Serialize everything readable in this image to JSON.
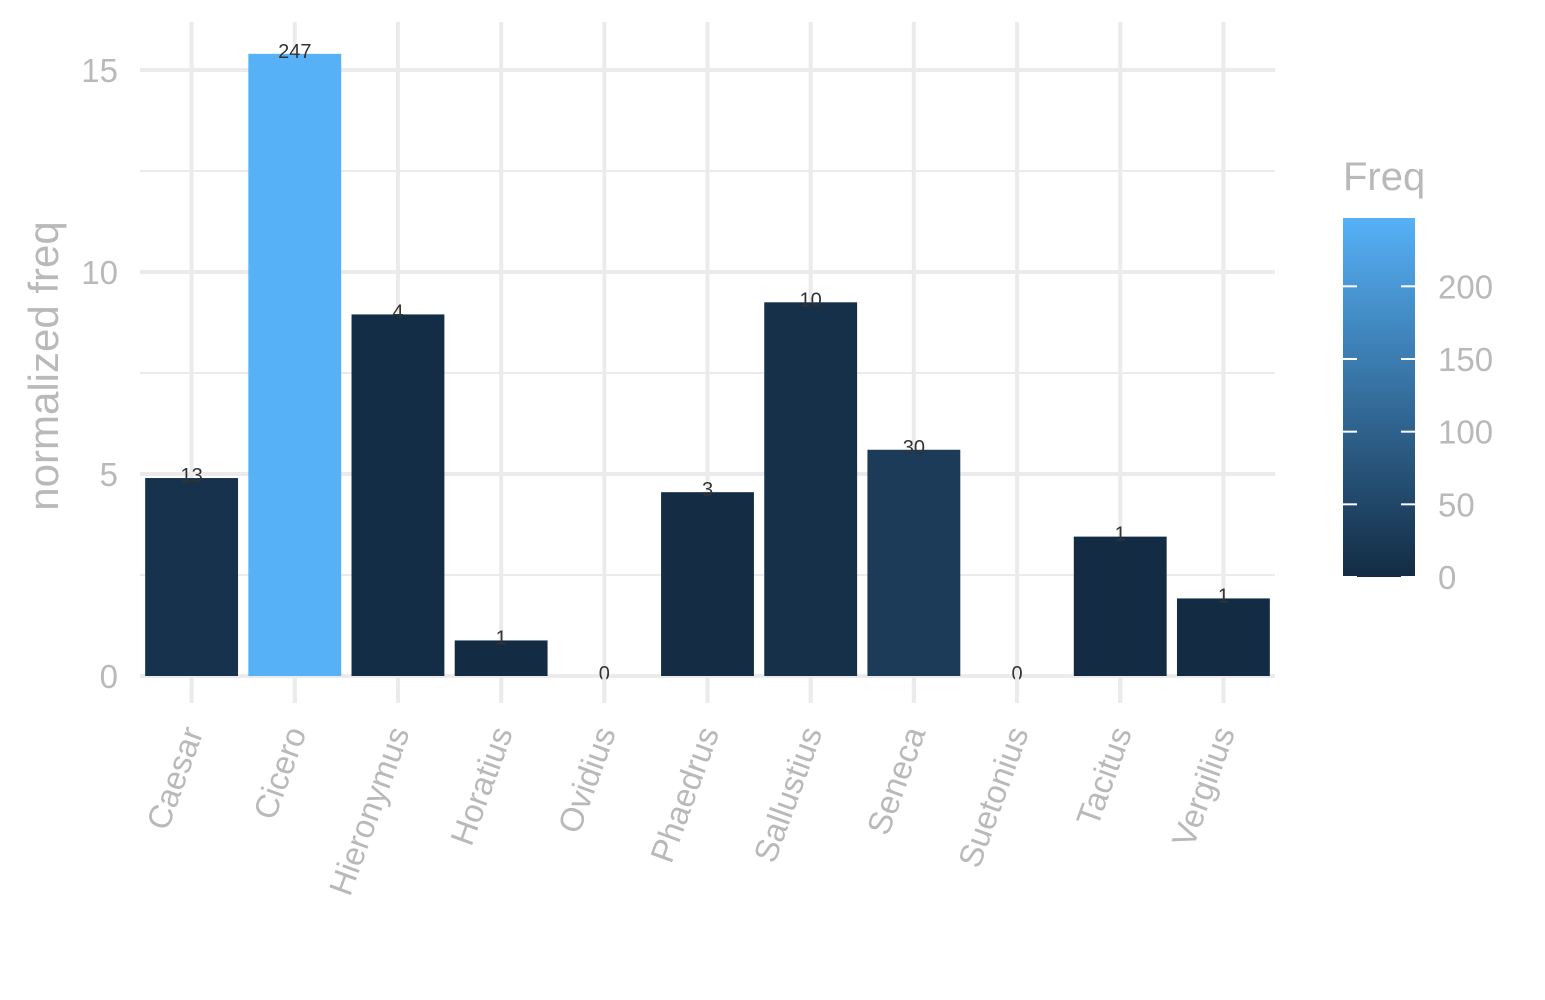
{
  "chart_data": {
    "type": "bar",
    "categories": [
      "Caesar",
      "Cicero",
      "Hieronymus",
      "Horatius",
      "Ovidius",
      "Phaedrus",
      "Sallustius",
      "Seneca",
      "Suetonius",
      "Tacitus",
      "Vergilius"
    ],
    "values": [
      4.9,
      15.4,
      8.95,
      0.88,
      0,
      4.55,
      9.25,
      5.6,
      0,
      3.45,
      1.92
    ],
    "freq": [
      13,
      247,
      4,
      1,
      0,
      3,
      10,
      30,
      0,
      1,
      1
    ],
    "xlabel": "",
    "ylabel": "normalized freq",
    "ylim": [
      0,
      15.8
    ],
    "yticks": [
      0,
      5,
      10,
      15
    ],
    "grid": true,
    "legend": {
      "title": "Freq",
      "ticks": [
        0,
        50,
        100,
        150,
        200
      ],
      "range": [
        0,
        247
      ],
      "low_color": "#132B43",
      "high_color": "#56B1F7",
      "placement": "right"
    }
  }
}
